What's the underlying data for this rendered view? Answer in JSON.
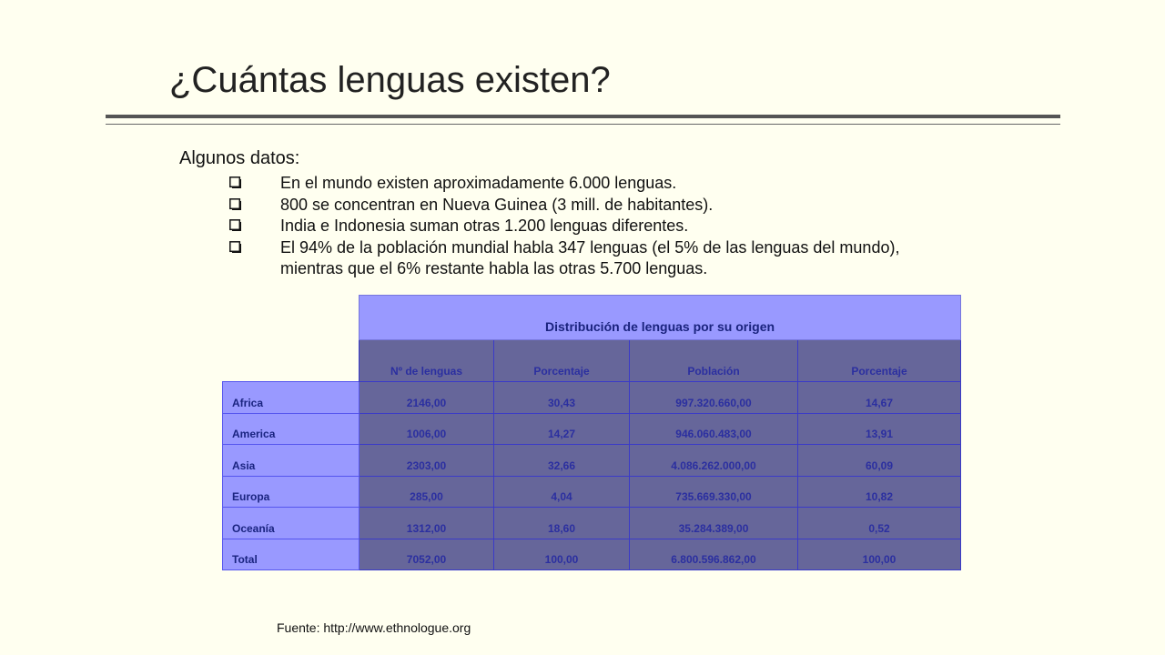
{
  "slide": {
    "title": "¿Cuántas lenguas existen?",
    "intro": "Algunos datos:",
    "bullets": [
      "En el mundo existen aproximadamente 6.000 lenguas.",
      "800 se concentran en Nueva Guinea (3 mill. de habitantes).",
      "India e Indonesia suman otras 1.200 lenguas diferentes.",
      "El 94% de la población mundial habla 347 lenguas (el 5% de las lenguas del mundo),",
      "mientras que el 6% restante habla las otras 5.700 lenguas."
    ],
    "source": "Fuente: http://www.ethnologue.org"
  },
  "table": {
    "title": "Distribución de lenguas por su origen",
    "columns": [
      "Nº de lenguas",
      "Porcentaje",
      "Población",
      "Porcentaje"
    ],
    "rows": [
      {
        "label": "Africa",
        "values": [
          "2146,00",
          "30,43",
          "997.320.660,00",
          "14,67"
        ]
      },
      {
        "label": "America",
        "values": [
          "1006,00",
          "14,27",
          "946.060.483,00",
          "13,91"
        ]
      },
      {
        "label": "Asia",
        "values": [
          "2303,00",
          "32,66",
          "4.086.262.000,00",
          "60,09"
        ]
      },
      {
        "label": "Europa",
        "values": [
          "285,00",
          "4,04",
          "735.669.330,00",
          "10,82"
        ]
      },
      {
        "label": "Oceanía",
        "values": [
          "1312,00",
          "18,60",
          "35.284.389,00",
          "0,52"
        ]
      },
      {
        "label": "Total",
        "values": [
          "7052,00",
          "100,00",
          "6.800.596.862,00",
          "100,00"
        ]
      }
    ]
  },
  "colors": {
    "background": "#fffff0",
    "header_fill": "#9999ff",
    "cell_fill": "#66669a",
    "cell_text": "#2b2fa0",
    "border": "#3a3ac8"
  },
  "icons": {
    "bullet": "checkbox-square-icon"
  }
}
